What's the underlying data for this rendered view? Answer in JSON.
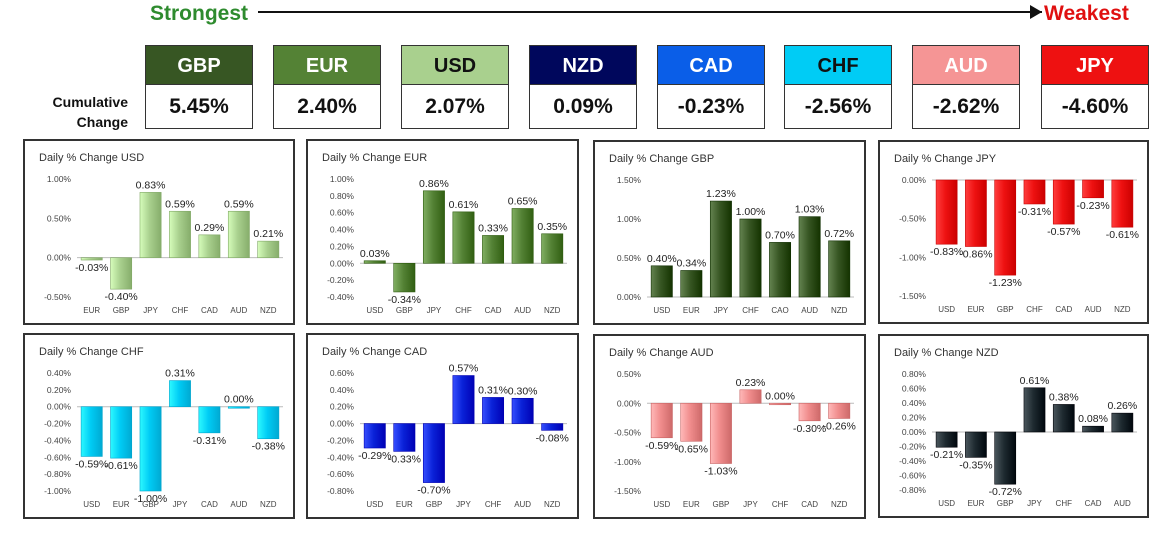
{
  "header": {
    "strongest_label": "Strongest",
    "weakest_label": "Weakest",
    "cumulative_label_line1": "Cumulative",
    "cumulative_label_line2": "Change"
  },
  "currencies": [
    {
      "code": "GBP",
      "change": "5.45%",
      "bg": "#375623",
      "fg": "#ffffff"
    },
    {
      "code": "EUR",
      "change": "2.40%",
      "bg": "#548235",
      "fg": "#ffffff"
    },
    {
      "code": "USD",
      "change": "2.07%",
      "bg": "#a9d08e",
      "fg": "#111111"
    },
    {
      "code": "NZD",
      "change": "0.09%",
      "bg": "#00075c",
      "fg": "#ffffff"
    },
    {
      "code": "CAD",
      "change": "-0.23%",
      "bg": "#0a5ee8",
      "fg": "#ffffff"
    },
    {
      "code": "CHF",
      "change": "-2.56%",
      "bg": "#00ccf5",
      "fg": "#111111"
    },
    {
      "code": "AUD",
      "change": "-2.62%",
      "bg": "#f59595",
      "fg": "#ffffff"
    },
    {
      "code": "JPY",
      "change": "-4.60%",
      "bg": "#ee1111",
      "fg": "#ffffff"
    }
  ],
  "chart_data": [
    {
      "type": "bar",
      "title": "Daily % Change USD",
      "categories": [
        "EUR",
        "GBP",
        "JPY",
        "CHF",
        "CAD",
        "AUD",
        "NZD"
      ],
      "values": [
        -0.03,
        -0.4,
        0.83,
        0.59,
        0.29,
        0.59,
        0.21
      ],
      "labels": [
        "-0.03%",
        "-0.40%",
        "0.83%",
        "0.59%",
        "0.29%",
        "0.59%",
        "0.21%"
      ],
      "ylim": [
        -0.5,
        1.0
      ],
      "ticks": [
        1.0,
        0.5,
        0.0,
        -0.5
      ],
      "tick_labels": [
        "1.00%",
        "0.50%",
        "0.00%",
        "-0.50%"
      ],
      "color": "#a9d08e"
    },
    {
      "type": "bar",
      "title": "Daily % Change EUR",
      "categories": [
        "USD",
        "GBP",
        "JPY",
        "CHF",
        "CAD",
        "AUD",
        "NZD"
      ],
      "values": [
        0.03,
        -0.34,
        0.86,
        0.61,
        0.33,
        0.65,
        0.35
      ],
      "labels": [
        "0.03%",
        "-0.34%",
        "0.86%",
        "0.61%",
        "0.33%",
        "0.65%",
        "0.35%"
      ],
      "ylim": [
        -0.4,
        1.0
      ],
      "ticks": [
        1.0,
        0.8,
        0.6,
        0.4,
        0.2,
        0.0,
        -0.2,
        -0.4
      ],
      "tick_labels": [
        "1.00%",
        "0.80%",
        "0.60%",
        "0.40%",
        "0.20%",
        "0.00%",
        "-0.20%",
        "-0.40%"
      ],
      "color": "#548235"
    },
    {
      "type": "bar",
      "title": "Daily % Change GBP",
      "categories": [
        "USD",
        "EUR",
        "JPY",
        "CHF",
        "CAO",
        "AUD",
        "NZD"
      ],
      "values": [
        0.4,
        0.34,
        1.23,
        1.0,
        0.7,
        1.03,
        0.72
      ],
      "labels": [
        "0.40%",
        "0.34%",
        "1.23%",
        "1.00%",
        "0.70%",
        "1.03%",
        "0.72%"
      ],
      "ylim": [
        0.0,
        1.5
      ],
      "ticks": [
        1.5,
        1.0,
        0.5,
        0.0
      ],
      "tick_labels": [
        "1.50%",
        "1.00%",
        "0.50%",
        "0.00%"
      ],
      "color": "#375623"
    },
    {
      "type": "bar",
      "title": "Daily % Change JPY",
      "categories": [
        "USD",
        "EUR",
        "GBP",
        "CHF",
        "CAD",
        "AUD",
        "NZD"
      ],
      "values": [
        -0.83,
        -0.86,
        -1.23,
        -0.31,
        -0.57,
        -0.23,
        -0.61
      ],
      "labels": [
        "-0.83%",
        "-0.86%",
        "-1.23%",
        "-0.31%",
        "-0.57%",
        "-0.23%",
        "-0.61%"
      ],
      "ylim": [
        -1.5,
        0.0
      ],
      "ticks": [
        0.0,
        -0.5,
        -1.0,
        -1.5
      ],
      "tick_labels": [
        "0.00%",
        "-0.50%",
        "-1.00%",
        "-1.50%"
      ],
      "color": "#ee1111"
    },
    {
      "type": "bar",
      "title": "Daily % Change CHF",
      "categories": [
        "USD",
        "EUR",
        "GBP",
        "JPY",
        "CAD",
        "AUD",
        "NZD"
      ],
      "values": [
        -0.59,
        -0.61,
        -1.0,
        0.31,
        -0.31,
        0.0,
        -0.38
      ],
      "labels": [
        "-0.59%",
        "-0.61%",
        "-1.00%",
        "0.31%",
        "-0.31%",
        "0.00%",
        "-0.38%"
      ],
      "ylim": [
        -1.0,
        0.4
      ],
      "ticks": [
        0.4,
        0.2,
        0.0,
        -0.2,
        -0.4,
        -0.6,
        -0.8,
        -1.0
      ],
      "tick_labels": [
        "0.40%",
        "0.20%",
        "0.00%",
        "-0.20%",
        "-0.40%",
        "-0.60%",
        "-0.80%",
        "-1.00%"
      ],
      "color": "#00ccf5"
    },
    {
      "type": "bar",
      "title": "Daily % Change CAD",
      "categories": [
        "USD",
        "EUR",
        "GBP",
        "JPY",
        "CHF",
        "AUD",
        "NZD"
      ],
      "values": [
        -0.29,
        -0.33,
        -0.7,
        0.57,
        0.31,
        0.3,
        -0.08
      ],
      "labels": [
        "-0.29%",
        "-0.33%",
        "-0.70%",
        "0.57%",
        "0.31%",
        "0.30%",
        "-0.08%"
      ],
      "ylim": [
        -0.8,
        0.6
      ],
      "ticks": [
        0.6,
        0.4,
        0.2,
        0.0,
        -0.2,
        -0.4,
        -0.6,
        -0.8
      ],
      "tick_labels": [
        "0.60%",
        "0.40%",
        "0.20%",
        "0.00%",
        "-0.20%",
        "-0.40%",
        "-0.60%",
        "-0.80%"
      ],
      "color": "#0a22d8"
    },
    {
      "type": "bar",
      "title": "Daily % Change AUD",
      "categories": [
        "USD",
        "EUR",
        "GBP",
        "JPY",
        "CHF",
        "CAD",
        "NZD"
      ],
      "values": [
        -0.59,
        -0.65,
        -1.03,
        0.23,
        0.0,
        -0.3,
        -0.26
      ],
      "labels": [
        "-0.59%",
        "-0.65%",
        "-1.03%",
        "0.23%",
        "0.00%",
        "-0.30%",
        "-0.26%"
      ],
      "ylim": [
        -1.5,
        0.5
      ],
      "ticks": [
        0.5,
        0.0,
        -0.5,
        -1.0,
        -1.5
      ],
      "tick_labels": [
        "0.50%",
        "0.00%",
        "-0.50%",
        "-1.00%",
        "-1.50%"
      ],
      "color": "#f08c8c"
    },
    {
      "type": "bar",
      "title": "Daily % Change NZD",
      "categories": [
        "USD",
        "EUR",
        "GBP",
        "JPY",
        "CHF",
        "CAD",
        "AUD"
      ],
      "values": [
        -0.21,
        -0.35,
        -0.72,
        0.61,
        0.38,
        0.08,
        0.26
      ],
      "labels": [
        "-0.21%",
        "-0.35%",
        "-0.72%",
        "0.61%",
        "0.38%",
        "0.08%",
        "0.26%"
      ],
      "ylim": [
        -0.8,
        0.8
      ],
      "ticks": [
        0.8,
        0.6,
        0.4,
        0.2,
        0.0,
        -0.2,
        -0.4,
        -0.6,
        -0.8
      ],
      "tick_labels": [
        "0.80%",
        "0.60%",
        "0.40%",
        "0.20%",
        "0.00%",
        "-0.20%",
        "-0.40%",
        "-0.60%",
        "-0.80%"
      ],
      "color": "#1e2a30"
    }
  ]
}
